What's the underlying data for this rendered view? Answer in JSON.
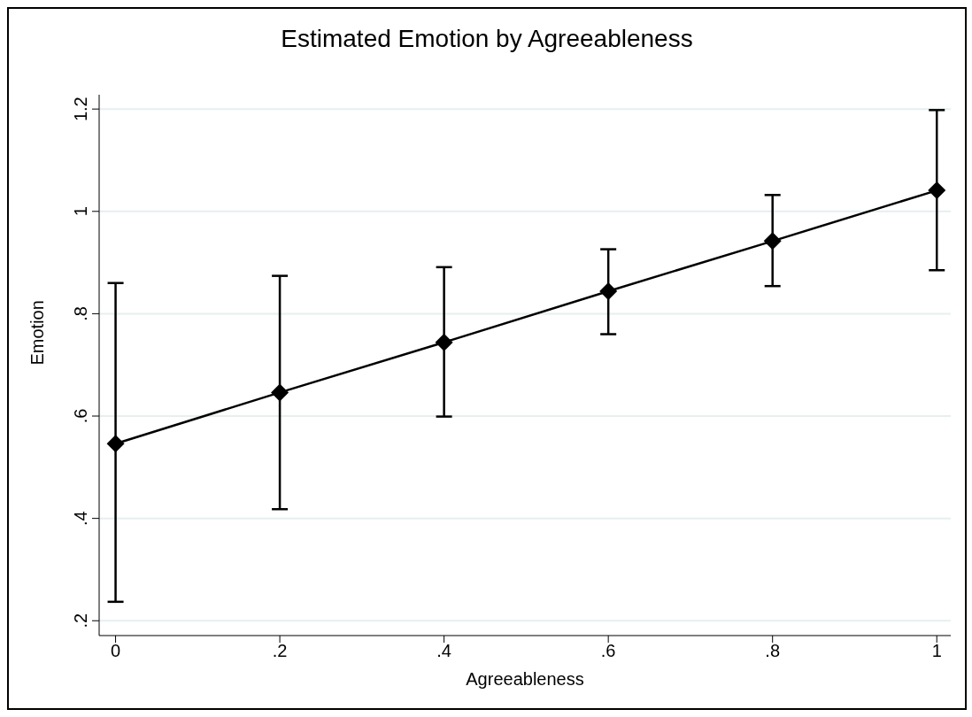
{
  "chart_data": {
    "type": "line",
    "title": "Estimated Emotion by Agreeableness",
    "xlabel": "Agreeableness",
    "ylabel": "Emotion",
    "x": [
      0,
      0.2,
      0.4,
      0.6,
      0.8,
      1
    ],
    "series": [
      {
        "color": "#000000",
        "values": [
          0.546,
          0.646,
          0.744,
          0.844,
          0.942,
          1.041
        ],
        "errors": [
          [
            0.237,
            0.86
          ],
          [
            0.418,
            0.874
          ],
          [
            0.599,
            0.891
          ],
          [
            0.76,
            0.926
          ],
          [
            0.854,
            1.032
          ],
          [
            0.885,
            1.198
          ]
        ]
      }
    ],
    "xlim": [
      -0.02,
      1.017
    ],
    "xticks": [
      {
        "value": 0,
        "label": "0"
      },
      {
        "value": 0.2,
        "label": ".2"
      },
      {
        "value": 0.4,
        "label": ".4"
      },
      {
        "value": 0.6,
        "label": ".6"
      },
      {
        "value": 0.8,
        "label": ".8"
      },
      {
        "value": 1,
        "label": "1"
      }
    ],
    "ylim": [
      0.171,
      1.228
    ],
    "yticks": [
      {
        "value": 0.2,
        "label": ".2"
      },
      {
        "value": 0.4,
        "label": ".4"
      },
      {
        "value": 0.6,
        "label": ".6"
      },
      {
        "value": 0.8,
        "label": ".8"
      },
      {
        "value": 1,
        "label": "1"
      },
      {
        "value": 1.2,
        "label": "1.2"
      }
    ],
    "grid": "y",
    "marker": "diamond",
    "line_style": "solid"
  }
}
